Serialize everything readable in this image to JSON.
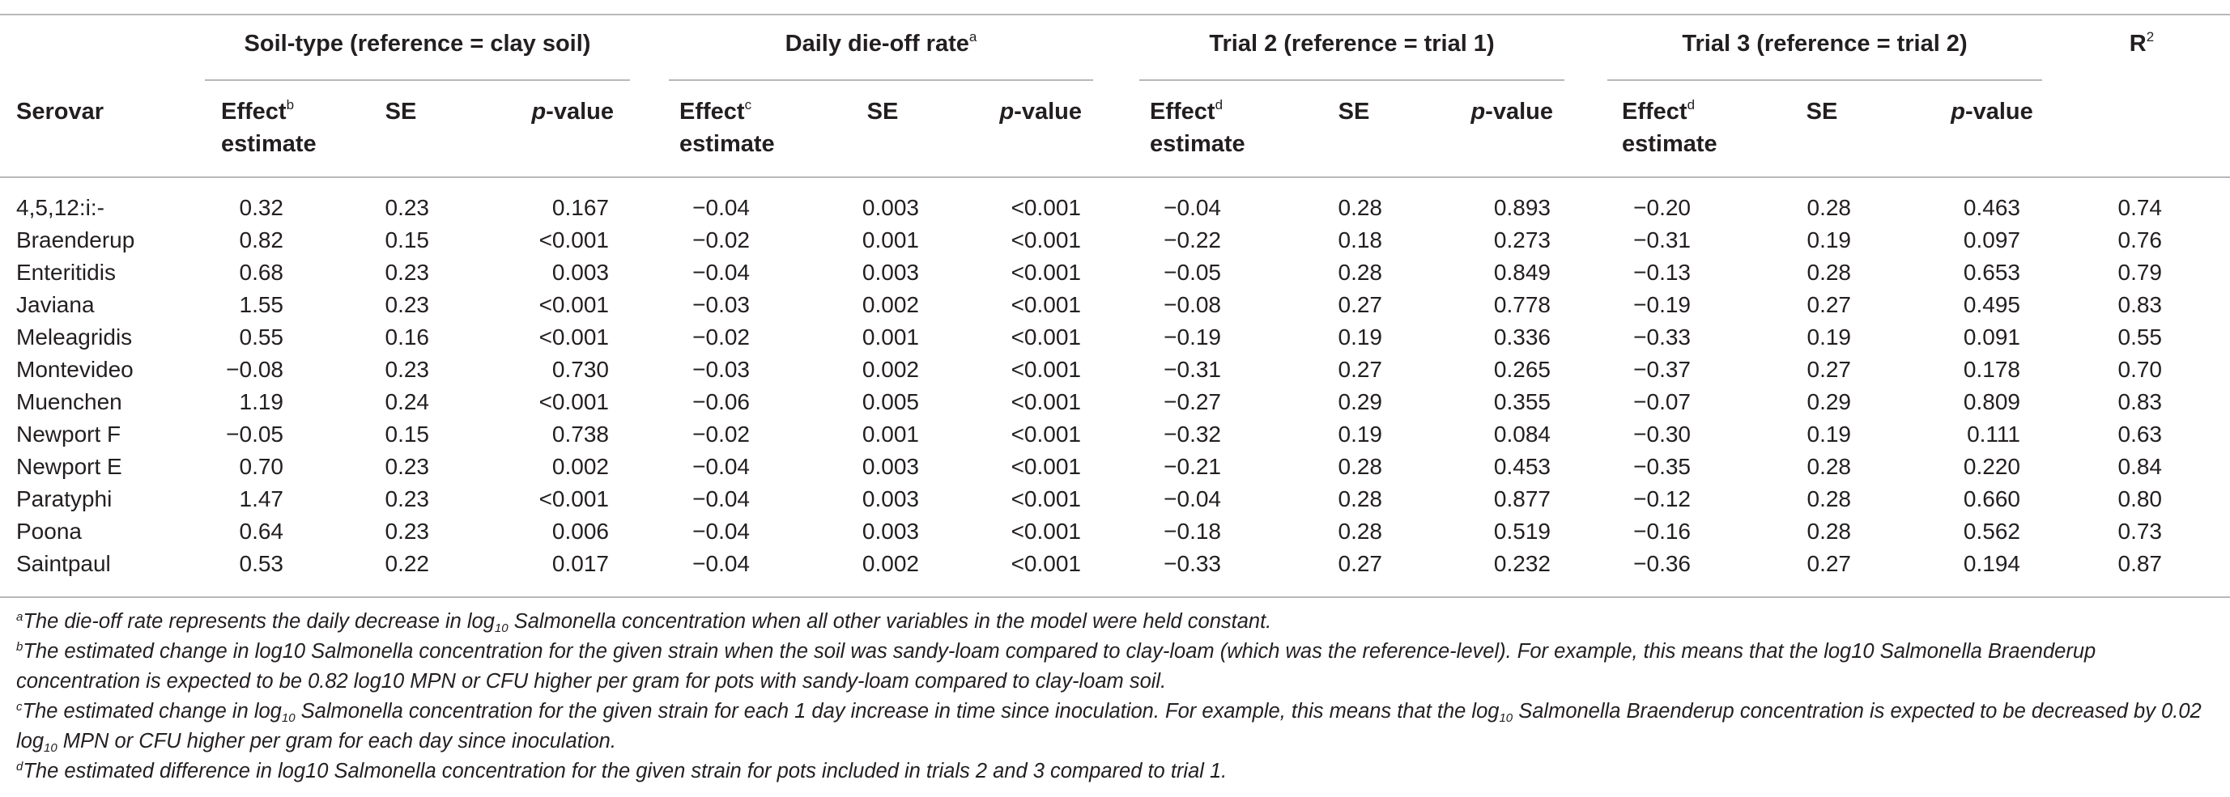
{
  "groups": {
    "soil": "Soil-type (reference = clay soil)",
    "dieoff": "Daily die-off rate",
    "dieoff_sup": "a",
    "trial2": "Trial 2 (reference = trial 1)",
    "trial3": "Trial 3 (reference = trial 2)",
    "r2": "R",
    "r2_sup": "2"
  },
  "columns": {
    "serovar": "Serovar",
    "effect": "Effect",
    "estimate": "estimate",
    "se": "SE",
    "p": "p",
    "p_suffix": "-value",
    "sup_b": "b",
    "sup_c": "c",
    "sup_d": "d"
  },
  "rows": [
    {
      "serovar": "4,5,12:i:-",
      "soil_eff": "0.32",
      "soil_se": "0.23",
      "soil_p": "0.167",
      "die_eff": "−0.04",
      "die_se": "0.003",
      "die_p": "<0.001",
      "t2_eff": "−0.04",
      "t2_se": "0.28",
      "t2_p": "0.893",
      "t3_eff": "−0.20",
      "t3_se": "0.28",
      "t3_p": "0.463",
      "r2": "0.74"
    },
    {
      "serovar": "Braenderup",
      "soil_eff": "0.82",
      "soil_se": "0.15",
      "soil_p": "<0.001",
      "die_eff": "−0.02",
      "die_se": "0.001",
      "die_p": "<0.001",
      "t2_eff": "−0.22",
      "t2_se": "0.18",
      "t2_p": "0.273",
      "t3_eff": "−0.31",
      "t3_se": "0.19",
      "t3_p": "0.097",
      "r2": "0.76"
    },
    {
      "serovar": "Enteritidis",
      "soil_eff": "0.68",
      "soil_se": "0.23",
      "soil_p": "0.003",
      "die_eff": "−0.04",
      "die_se": "0.003",
      "die_p": "<0.001",
      "t2_eff": "−0.05",
      "t2_se": "0.28",
      "t2_p": "0.849",
      "t3_eff": "−0.13",
      "t3_se": "0.28",
      "t3_p": "0.653",
      "r2": "0.79"
    },
    {
      "serovar": "Javiana",
      "soil_eff": "1.55",
      "soil_se": "0.23",
      "soil_p": "<0.001",
      "die_eff": "−0.03",
      "die_se": "0.002",
      "die_p": "<0.001",
      "t2_eff": "−0.08",
      "t2_se": "0.27",
      "t2_p": "0.778",
      "t3_eff": "−0.19",
      "t3_se": "0.27",
      "t3_p": "0.495",
      "r2": "0.83"
    },
    {
      "serovar": "Meleagridis",
      "soil_eff": "0.55",
      "soil_se": "0.16",
      "soil_p": "<0.001",
      "die_eff": "−0.02",
      "die_se": "0.001",
      "die_p": "<0.001",
      "t2_eff": "−0.19",
      "t2_se": "0.19",
      "t2_p": "0.336",
      "t3_eff": "−0.33",
      "t3_se": "0.19",
      "t3_p": "0.091",
      "r2": "0.55"
    },
    {
      "serovar": "Montevideo",
      "soil_eff": "−0.08",
      "soil_se": "0.23",
      "soil_p": "0.730",
      "die_eff": "−0.03",
      "die_se": "0.002",
      "die_p": "<0.001",
      "t2_eff": "−0.31",
      "t2_se": "0.27",
      "t2_p": "0.265",
      "t3_eff": "−0.37",
      "t3_se": "0.27",
      "t3_p": "0.178",
      "r2": "0.70"
    },
    {
      "serovar": "Muenchen",
      "soil_eff": "1.19",
      "soil_se": "0.24",
      "soil_p": "<0.001",
      "die_eff": "−0.06",
      "die_se": "0.005",
      "die_p": "<0.001",
      "t2_eff": "−0.27",
      "t2_se": "0.29",
      "t2_p": "0.355",
      "t3_eff": "−0.07",
      "t3_se": "0.29",
      "t3_p": "0.809",
      "r2": "0.83"
    },
    {
      "serovar": "Newport F",
      "soil_eff": "−0.05",
      "soil_se": "0.15",
      "soil_p": "0.738",
      "die_eff": "−0.02",
      "die_se": "0.001",
      "die_p": "<0.001",
      "t2_eff": "−0.32",
      "t2_se": "0.19",
      "t2_p": "0.084",
      "t3_eff": "−0.30",
      "t3_se": "0.19",
      "t3_p": "0.111",
      "r2": "0.63"
    },
    {
      "serovar": "Newport E",
      "soil_eff": "0.70",
      "soil_se": "0.23",
      "soil_p": "0.002",
      "die_eff": "−0.04",
      "die_se": "0.003",
      "die_p": "<0.001",
      "t2_eff": "−0.21",
      "t2_se": "0.28",
      "t2_p": "0.453",
      "t3_eff": "−0.35",
      "t3_se": "0.28",
      "t3_p": "0.220",
      "r2": "0.84"
    },
    {
      "serovar": "Paratyphi",
      "soil_eff": "1.47",
      "soil_se": "0.23",
      "soil_p": "<0.001",
      "die_eff": "−0.04",
      "die_se": "0.003",
      "die_p": "<0.001",
      "t2_eff": "−0.04",
      "t2_se": "0.28",
      "t2_p": "0.877",
      "t3_eff": "−0.12",
      "t3_se": "0.28",
      "t3_p": "0.660",
      "r2": "0.80"
    },
    {
      "serovar": "Poona",
      "soil_eff": "0.64",
      "soil_se": "0.23",
      "soil_p": "0.006",
      "die_eff": "−0.04",
      "die_se": "0.003",
      "die_p": "<0.001",
      "t2_eff": "−0.18",
      "t2_se": "0.28",
      "t2_p": "0.519",
      "t3_eff": "−0.16",
      "t3_se": "0.28",
      "t3_p": "0.562",
      "r2": "0.73"
    },
    {
      "serovar": "Saintpaul",
      "soil_eff": "0.53",
      "soil_se": "0.22",
      "soil_p": "0.017",
      "die_eff": "−0.04",
      "die_se": "0.002",
      "die_p": "<0.001",
      "t2_eff": "−0.33",
      "t2_se": "0.27",
      "t2_p": "0.232",
      "t3_eff": "−0.36",
      "t3_se": "0.27",
      "t3_p": "0.194",
      "r2": "0.87"
    }
  ],
  "footnotes": {
    "a": {
      "mark": "a",
      "p1": "The die-off rate represents the daily decrease in log",
      "sub1": "10",
      "p2": " Salmonella concentration when all other variables in the model were held constant."
    },
    "b": {
      "mark": "b",
      "text": "The estimated change in log10 Salmonella concentration for the given strain when the soil was sandy-loam compared to clay-loam (which was the reference-level). For example, this means that the log10 Salmonella Braenderup concentration is expected to be 0.82 log10 MPN or CFU higher per gram for pots with sandy-loam compared to clay-loam soil."
    },
    "c": {
      "mark": "c",
      "p1": "The estimated change in log",
      "sub1": "10",
      "p2": " Salmonella concentration for the given strain for each 1 day increase in time since inoculation. For example, this means that the log",
      "sub2": "10",
      "p3": " Salmonella Braenderup concentration is expected to be decreased by 0.02 log",
      "sub3": "10",
      "p4": " MPN or CFU higher per gram for each day since inoculation."
    },
    "d": {
      "mark": "d",
      "text": "The estimated difference in log10 Salmonella concentration for the given strain for pots included in trials 2 and 3 compared to trial 1."
    }
  }
}
